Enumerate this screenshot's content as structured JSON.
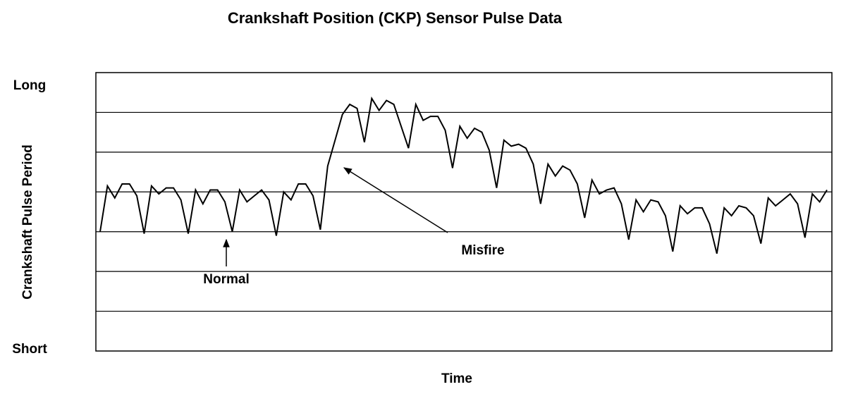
{
  "chart_data": {
    "type": "line",
    "title": "Crankshaft Position (CKP) Sensor Pulse Data",
    "x_label": "Time",
    "y_label": "Crankshaft Pulse Period",
    "ylim": [
      0,
      7
    ],
    "yticks": [
      {
        "value": 0,
        "label": "Short"
      },
      {
        "value": 7,
        "label": "Long"
      }
    ],
    "ygrid": [
      1,
      2,
      3,
      4,
      5,
      6
    ],
    "grid": true,
    "color": "#000000",
    "annotations": [
      "Normal",
      "Misfire"
    ],
    "values": [
      3.0,
      4.15,
      3.85,
      4.2,
      4.2,
      3.9,
      2.95,
      4.15,
      3.95,
      4.1,
      4.1,
      3.8,
      2.95,
      4.05,
      3.7,
      4.05,
      4.05,
      3.75,
      3.0,
      4.05,
      3.75,
      3.9,
      4.05,
      3.8,
      2.9,
      4.0,
      3.8,
      4.2,
      4.2,
      3.9,
      3.05,
      4.65,
      5.3,
      5.95,
      6.2,
      6.1,
      5.25,
      6.35,
      6.05,
      6.3,
      6.2,
      5.65,
      5.1,
      6.2,
      5.8,
      5.9,
      5.9,
      5.55,
      4.6,
      5.65,
      5.35,
      5.6,
      5.5,
      5.05,
      4.1,
      5.3,
      5.15,
      5.2,
      5.1,
      4.7,
      3.7,
      4.7,
      4.4,
      4.65,
      4.55,
      4.2,
      3.35,
      4.3,
      3.95,
      4.05,
      4.1,
      3.7,
      2.8,
      3.8,
      3.5,
      3.8,
      3.75,
      3.4,
      2.5,
      3.65,
      3.45,
      3.6,
      3.6,
      3.2,
      2.45,
      3.6,
      3.4,
      3.65,
      3.6,
      3.4,
      2.7,
      3.85,
      3.65,
      3.8,
      3.95,
      3.7,
      2.85,
      3.95,
      3.75,
      4.05
    ]
  }
}
